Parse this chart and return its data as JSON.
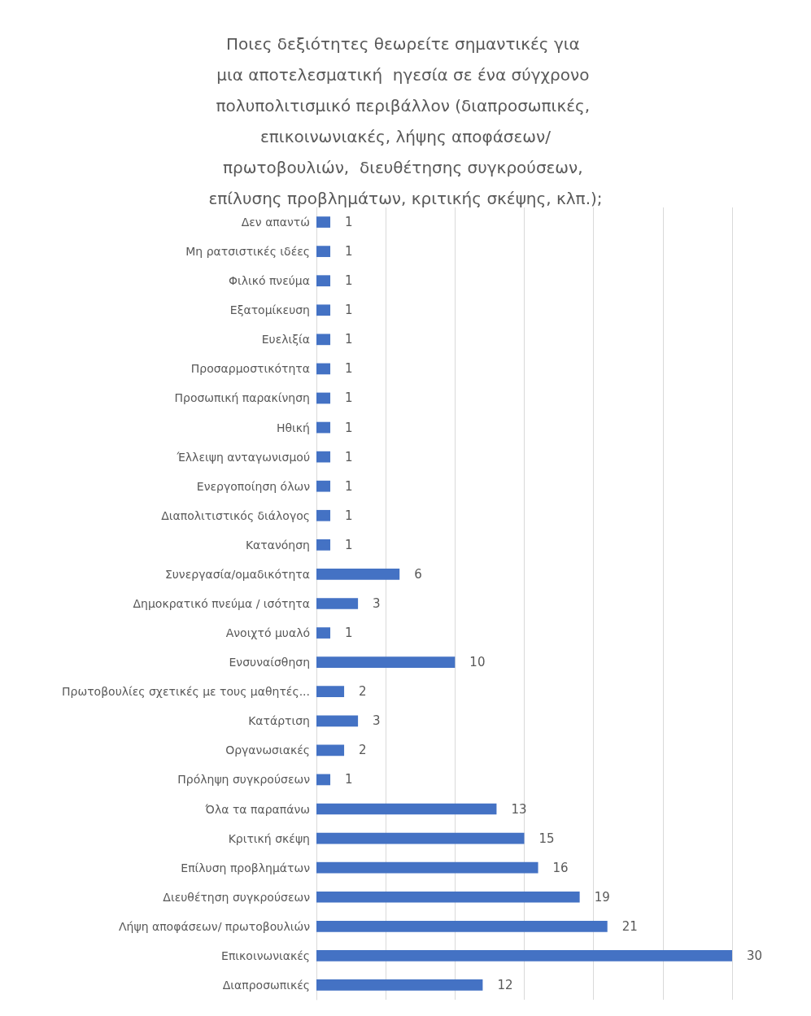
{
  "chart_data": {
    "type": "bar",
    "orientation": "horizontal",
    "title": "Ποιες δεξιότητες θεωρείτε σημαντικές για μια αποτελεσματική  ηγεσία σε ένα σύγχρονο πολυπολιτισμικό περιβάλλον (διαπροσωπικές, επικοινωνιακές, λήψης αποφάσεων/πρωτοβουλιών,  διευθέτησης συγκρούσεων, επίλυσης προβλημάτων, κριτικής σκέψης, κλπ.);",
    "categories": [
      "Δεν απαντώ",
      "Μη ρατσιστικές ιδέες",
      "Φιλικό πνεύμα",
      "Εξατομίκευση",
      "Ευελιξία",
      "Προσαρμοστικότητα",
      "Προσωπική παρακίνηση",
      "Ηθική",
      "Έλλειψη ανταγωνισμού",
      "Ενεργοποίηση όλων",
      "Διαπολιτιστικός διάλογος",
      "Κατανόηση",
      "Συνεργασία/ομαδικότητα",
      "Δημοκρατικό πνεύμα / ισότητα",
      "Ανοιχτό μυαλό",
      "Ενσυναίσθηση",
      "Πρωτοβουλίες σχετικές με τους μαθητές...",
      "Κατάρτιση",
      "Οργανωσιακές",
      "Πρόληψη συγκρούσεων",
      "Όλα τα παραπάνω",
      "Κριτική σκέψη",
      "Επίλυση προβλημάτων",
      "Διευθέτηση συγκρούσεων",
      "Λήψη αποφάσεων/ πρωτοβουλιών",
      "Επικοινωνιακές",
      "Διαπροσωπικές"
    ],
    "values": [
      1,
      1,
      1,
      1,
      1,
      1,
      1,
      1,
      1,
      1,
      1,
      1,
      6,
      3,
      1,
      10,
      2,
      3,
      2,
      1,
      13,
      15,
      16,
      19,
      21,
      30,
      12
    ],
    "color": "#4472c4",
    "data_labels": true,
    "grid": "x",
    "tick_labels": "y",
    "xlim": [
      0,
      30
    ],
    "xticks": [
      {
        "value": 0,
        "label": null
      },
      {
        "value": 5,
        "label": null
      },
      {
        "value": 10,
        "label": null
      },
      {
        "value": 15,
        "label": null
      },
      {
        "value": 20,
        "label": null
      },
      {
        "value": 25,
        "label": null
      },
      {
        "value": 30,
        "label": null
      }
    ]
  }
}
